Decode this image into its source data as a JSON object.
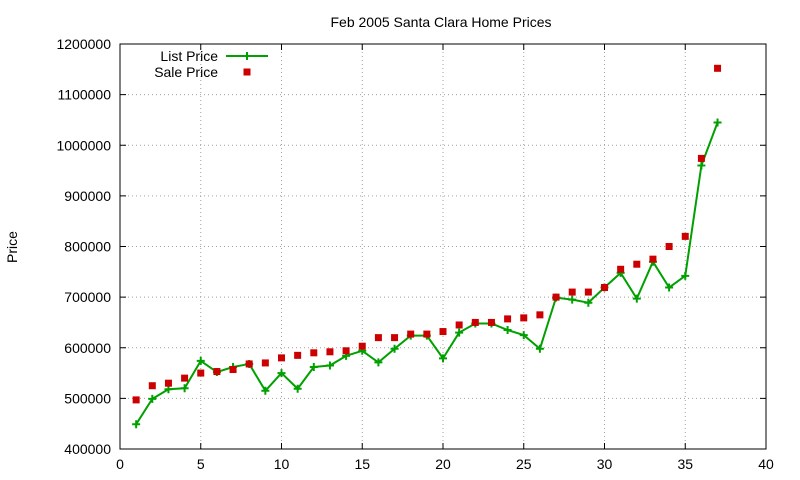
{
  "chart_data": {
    "type": "line",
    "title": "Feb 2005 Santa Clara Home Prices",
    "xlabel": "",
    "ylabel": "Price",
    "xlim": [
      0,
      40
    ],
    "ylim": [
      400000,
      1200000
    ],
    "xticks": [
      0,
      5,
      10,
      15,
      20,
      25,
      30,
      35,
      40
    ],
    "yticks": [
      400000,
      500000,
      600000,
      700000,
      800000,
      900000,
      1000000,
      1100000,
      1200000
    ],
    "grid": true,
    "legend_position": "top-left",
    "series": [
      {
        "name": "List Price",
        "style": "line-with-plus-markers",
        "color": "#00a000",
        "x": [
          1,
          2,
          3,
          4,
          5,
          6,
          7,
          8,
          9,
          10,
          11,
          12,
          13,
          14,
          15,
          16,
          17,
          18,
          19,
          20,
          21,
          22,
          23,
          24,
          25,
          26,
          27,
          28,
          29,
          30,
          31,
          32,
          33,
          34,
          35,
          36,
          37
        ],
        "values": [
          449000,
          499000,
          518000,
          520000,
          574000,
          552000,
          562000,
          568000,
          515000,
          550000,
          519000,
          562000,
          565000,
          584000,
          594000,
          571000,
          598000,
          624000,
          624000,
          579000,
          630000,
          648000,
          648000,
          635000,
          625000,
          598000,
          699000,
          695000,
          689000,
          719000,
          748000,
          697000,
          770000,
          719000,
          742000,
          960000,
          1045000
        ]
      },
      {
        "name": "Sale Price",
        "style": "square-markers",
        "color": "#cc0000",
        "x": [
          1,
          2,
          3,
          4,
          5,
          6,
          7,
          8,
          9,
          10,
          11,
          12,
          13,
          14,
          15,
          16,
          17,
          18,
          19,
          20,
          21,
          22,
          23,
          24,
          25,
          26,
          27,
          28,
          29,
          30,
          31,
          32,
          33,
          34,
          35,
          36,
          37
        ],
        "values": [
          497000,
          525000,
          530000,
          540000,
          550000,
          553000,
          557000,
          568000,
          570000,
          580000,
          585000,
          590000,
          592000,
          594000,
          603000,
          620000,
          620000,
          627000,
          627000,
          632000,
          645000,
          650000,
          650000,
          657000,
          659000,
          665000,
          700000,
          710000,
          710000,
          719000,
          755000,
          765000,
          775000,
          800000,
          820000,
          974000,
          1152000
        ]
      }
    ]
  }
}
